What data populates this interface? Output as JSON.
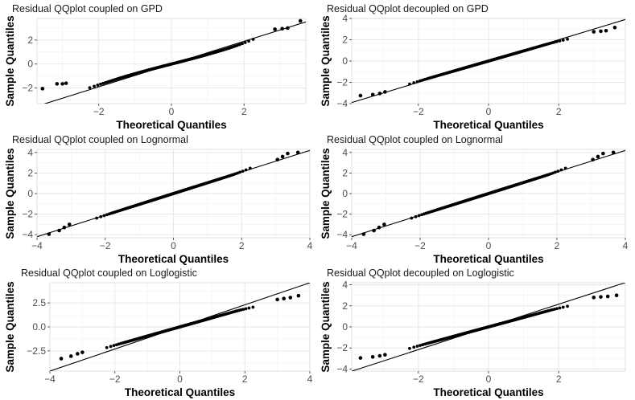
{
  "chart_data": [
    {
      "type": "scatter",
      "title": "Residual QQplot coupled on GPD",
      "xlabel": "Theoretical Quantiles",
      "ylabel": "Sample Quantiles",
      "xlim": [
        -3.7,
        3.7
      ],
      "ylim": [
        -3.3,
        3.8
      ],
      "xticks": [
        -2,
        0,
        2
      ],
      "yticks": [
        -2,
        0,
        2
      ],
      "xtick_labels": [
        "−2",
        "0",
        "2"
      ],
      "ytick_labels": [
        "−2",
        "0",
        "2"
      ],
      "grid": true,
      "reference_line": {
        "intercept": 0.0,
        "slope": 0.95
      },
      "qq_shape": {
        "scale": 0.78,
        "cubic": 0.023,
        "left_tail": -0.45,
        "right_tail": 0.1
      },
      "tail_points": [
        [
          -3.55,
          -2.05
        ],
        [
          -3.15,
          -1.65
        ],
        [
          -3.0,
          -1.65
        ],
        [
          -2.9,
          -1.6
        ],
        [
          2.85,
          2.9
        ],
        [
          3.05,
          2.95
        ],
        [
          3.2,
          3.0
        ],
        [
          3.55,
          3.6
        ]
      ]
    },
    {
      "type": "scatter",
      "title": "Residual QQplot decoupled on GPD",
      "xlabel": "Theoretical Quantiles",
      "ylabel": "Sample Quantiles",
      "xlim": [
        -3.9,
        3.9
      ],
      "ylim": [
        -4.0,
        4.0
      ],
      "xticks": [
        -2,
        0,
        2
      ],
      "yticks": [
        -4,
        -2,
        0,
        2,
        4
      ],
      "xtick_labels": [
        "−2",
        "0",
        "2"
      ],
      "ytick_labels": [
        "−4",
        "−2",
        "0",
        "2",
        "4"
      ],
      "grid": true,
      "reference_line": {
        "intercept": 0.0,
        "slope": 1.0
      },
      "qq_shape": {
        "scale": 0.95,
        "cubic": 0.0,
        "left_tail": 0.3,
        "right_tail": -0.2
      },
      "tail_points": [
        [
          -3.65,
          -3.25
        ],
        [
          -3.3,
          -3.15
        ],
        [
          -3.1,
          -3.05
        ],
        [
          -2.95,
          -2.9
        ],
        [
          3.0,
          2.75
        ],
        [
          3.2,
          2.8
        ],
        [
          3.35,
          2.85
        ],
        [
          3.6,
          3.15
        ]
      ]
    },
    {
      "type": "scatter",
      "title": "Residual QQplot coupled on Lognormal",
      "xlabel": "Theoretical Quantiles",
      "ylabel": "Sample Quantiles",
      "xlim": [
        -4.0,
        4.0
      ],
      "ylim": [
        -4.3,
        4.3
      ],
      "xticks": [
        -4,
        -2,
        0,
        2,
        4
      ],
      "yticks": [
        -4,
        -2,
        0,
        2,
        4
      ],
      "xtick_labels": [
        "−4",
        "−2",
        "0",
        "2",
        "4"
      ],
      "ytick_labels": [
        "−4",
        "−2",
        "0",
        "2",
        "4"
      ],
      "grid": true,
      "reference_line": {
        "intercept": 0.0,
        "slope": 1.05
      },
      "qq_shape": {
        "scale": 1.05,
        "cubic": 0.0,
        "left_tail": 0.25,
        "right_tail": 0.25
      },
      "tail_points": [
        [
          -3.65,
          -3.95
        ],
        [
          -3.35,
          -3.6
        ],
        [
          -3.2,
          -3.3
        ],
        [
          -3.05,
          -3.0
        ],
        [
          3.05,
          3.3
        ],
        [
          3.2,
          3.6
        ],
        [
          3.35,
          3.9
        ],
        [
          3.65,
          4.0
        ]
      ]
    },
    {
      "type": "scatter",
      "title": "Residual QQplot coupled on Lognormal",
      "xlabel": "Theoretical Quantiles",
      "ylabel": "Sample Quantiles",
      "xlim": [
        -4.0,
        4.0
      ],
      "ylim": [
        -4.3,
        4.3
      ],
      "xticks": [
        -4,
        -2,
        0,
        2,
        4
      ],
      "yticks": [
        -4,
        -2,
        0,
        2,
        4
      ],
      "xtick_labels": [
        "−4",
        "−2",
        "0",
        "2",
        "4"
      ],
      "ytick_labels": [
        "−4",
        "−2",
        "0",
        "2",
        "4"
      ],
      "grid": true,
      "reference_line": {
        "intercept": 0.0,
        "slope": 1.05
      },
      "qq_shape": {
        "scale": 1.05,
        "cubic": 0.0,
        "left_tail": 0.25,
        "right_tail": 0.25
      },
      "tail_points": [
        [
          -3.65,
          -3.95
        ],
        [
          -3.35,
          -3.6
        ],
        [
          -3.2,
          -3.3
        ],
        [
          -3.05,
          -3.0
        ],
        [
          3.05,
          3.3
        ],
        [
          3.2,
          3.6
        ],
        [
          3.35,
          3.9
        ],
        [
          3.65,
          4.0
        ]
      ]
    },
    {
      "type": "scatter",
      "title": "Residual QQplot coupled on Loglogistic",
      "xlabel": "Theoretical Quantiles",
      "ylabel": "Sample Quantiles",
      "xlim": [
        -4.0,
        4.0
      ],
      "ylim": [
        -4.6,
        4.6
      ],
      "xticks": [
        -4,
        -2,
        0,
        2,
        4
      ],
      "yticks": [
        -2.5,
        0.0,
        2.5
      ],
      "xtick_labels": [
        "−4",
        "−2",
        "0",
        "2",
        "4"
      ],
      "ytick_labels": [
        "−2.5",
        "0.0",
        "2.5"
      ],
      "grid": true,
      "reference_line": {
        "intercept": 0.0,
        "slope": 1.15
      },
      "qq_shape": {
        "scale": 0.95,
        "cubic": 0.0,
        "left_tail": 0.2,
        "right_tail": -0.2
      },
      "tail_points": [
        [
          -3.65,
          -3.3
        ],
        [
          -3.35,
          -3.05
        ],
        [
          -3.15,
          -2.8
        ],
        [
          -3.0,
          -2.65
        ],
        [
          3.0,
          2.85
        ],
        [
          3.2,
          2.95
        ],
        [
          3.4,
          3.05
        ],
        [
          3.65,
          3.25
        ]
      ]
    },
    {
      "type": "scatter",
      "title": "Residual QQplot decoupled on Loglogistic",
      "xlabel": "Theoretical Quantiles",
      "ylabel": "Sample Quantiles",
      "xlim": [
        -3.9,
        3.9
      ],
      "ylim": [
        -4.2,
        4.2
      ],
      "xticks": [
        -2,
        0,
        2
      ],
      "yticks": [
        -4,
        -2,
        0,
        2,
        4
      ],
      "xtick_labels": [
        "−2",
        "0",
        "2"
      ],
      "ytick_labels": [
        "−4",
        "−2",
        "0",
        "2",
        "4"
      ],
      "grid": true,
      "reference_line": {
        "intercept": 0.0,
        "slope": 1.08
      },
      "qq_shape": {
        "scale": 0.9,
        "cubic": 0.0,
        "left_tail": 0.2,
        "right_tail": -0.15
      },
      "tail_points": [
        [
          -3.65,
          -2.95
        ],
        [
          -3.3,
          -2.85
        ],
        [
          -3.1,
          -2.75
        ],
        [
          -2.95,
          -2.65
        ],
        [
          3.0,
          2.8
        ],
        [
          3.2,
          2.85
        ],
        [
          3.4,
          2.9
        ],
        [
          3.65,
          3.0
        ]
      ]
    }
  ]
}
